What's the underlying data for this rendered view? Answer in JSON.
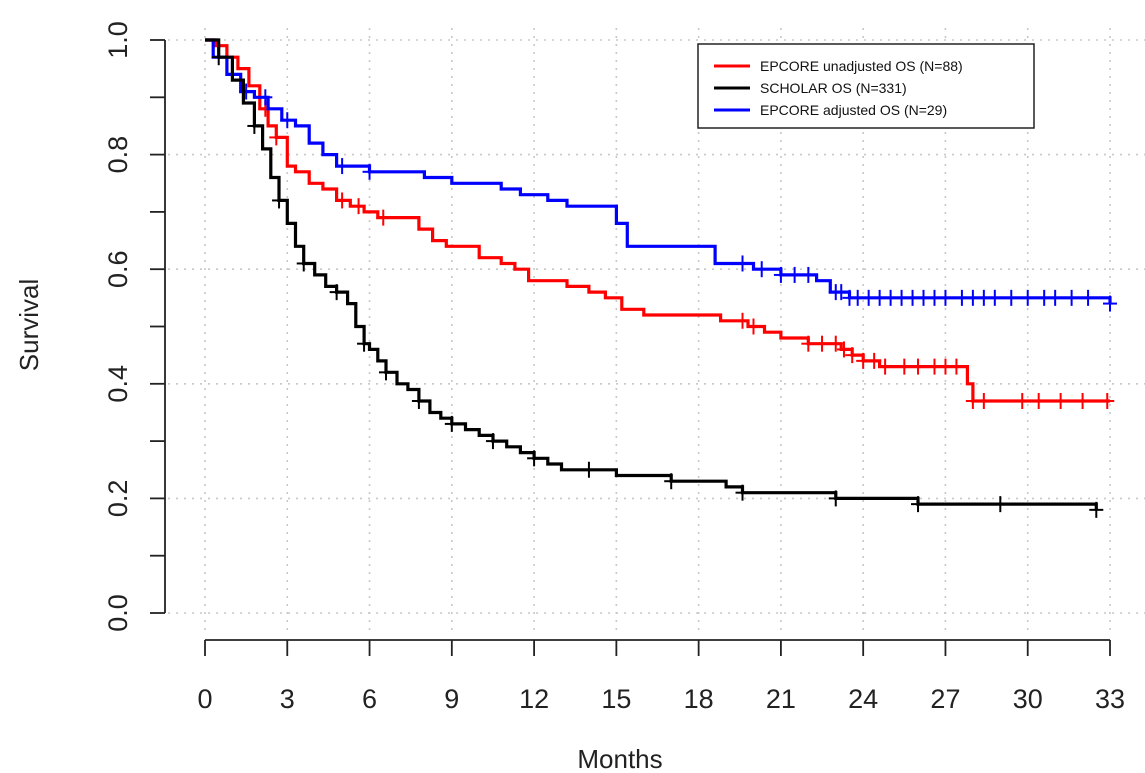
{
  "chart_data": {
    "type": "line",
    "title": "",
    "xlabel": "Months",
    "ylabel": "Survival",
    "xlim": [
      0,
      33
    ],
    "ylim": [
      0,
      1
    ],
    "x_ticks": [
      0,
      3,
      6,
      9,
      12,
      15,
      18,
      21,
      24,
      27,
      30,
      33
    ],
    "y_ticks": [
      0.0,
      0.2,
      0.4,
      0.6,
      0.8,
      1.0
    ],
    "y_tick_labels": [
      "0.0",
      "0.2",
      "0.4",
      "0.6",
      "0.8",
      "1.0"
    ],
    "grid": true,
    "legend_position": "top-right",
    "series": [
      {
        "name": "EPCORE unadjusted OS (N=88)",
        "color": "#ff0000",
        "x": [
          0,
          0.4,
          0.8,
          1.2,
          1.6,
          2.0,
          2.3,
          2.6,
          3.0,
          3.3,
          3.8,
          4.3,
          4.8,
          5.3,
          5.8,
          6.3,
          6.8,
          7.8,
          8.3,
          8.8,
          9.5,
          10.0,
          10.8,
          11.3,
          11.8,
          12.3,
          13.2,
          14.0,
          14.6,
          15.2,
          16.0,
          17.3,
          18.2,
          18.8,
          19.8,
          20.4,
          21.0,
          22.0,
          23.2,
          23.6,
          24.0,
          24.6,
          25.2,
          27.6,
          27.8,
          28.0,
          33.0
        ],
        "y": [
          1.0,
          0.99,
          0.97,
          0.95,
          0.92,
          0.88,
          0.85,
          0.83,
          0.78,
          0.77,
          0.75,
          0.74,
          0.72,
          0.71,
          0.7,
          0.69,
          0.69,
          0.67,
          0.65,
          0.64,
          0.64,
          0.62,
          0.61,
          0.6,
          0.58,
          0.58,
          0.57,
          0.56,
          0.55,
          0.53,
          0.52,
          0.52,
          0.52,
          0.51,
          0.5,
          0.49,
          0.48,
          0.47,
          0.46,
          0.45,
          0.44,
          0.43,
          0.43,
          0.43,
          0.4,
          0.37,
          0.37
        ],
        "censor": [
          2.2,
          2.6,
          5.0,
          5.6,
          6.5,
          19.6,
          20.0,
          22.0,
          22.5,
          23.0,
          23.3,
          23.6,
          24.0,
          24.4,
          24.8,
          25.5,
          26.0,
          26.6,
          27.0,
          27.4,
          28.0,
          28.4,
          29.8,
          30.4,
          31.2,
          32.0,
          32.9
        ]
      },
      {
        "name": "SCHOLAR OS (N=331)",
        "color": "#000000",
        "x": [
          0,
          0.5,
          1.0,
          1.4,
          1.8,
          2.1,
          2.4,
          2.7,
          3.0,
          3.3,
          3.6,
          4.0,
          4.4,
          4.8,
          5.2,
          5.5,
          5.8,
          6.0,
          6.3,
          6.6,
          7.0,
          7.4,
          7.8,
          8.2,
          8.6,
          9.0,
          9.5,
          10.0,
          10.5,
          11.0,
          11.5,
          12.0,
          12.5,
          13.0,
          14.0,
          15.0,
          16.0,
          17.0,
          18.0,
          19.0,
          19.6,
          20.5,
          22.0,
          23.0,
          24.0,
          25.0,
          26.0,
          27.0,
          28.0,
          29.0,
          30.0,
          31.0,
          32.5
        ],
        "y": [
          1.0,
          0.97,
          0.93,
          0.89,
          0.85,
          0.81,
          0.76,
          0.72,
          0.68,
          0.64,
          0.61,
          0.59,
          0.57,
          0.56,
          0.54,
          0.5,
          0.47,
          0.46,
          0.44,
          0.42,
          0.4,
          0.39,
          0.37,
          0.35,
          0.34,
          0.33,
          0.32,
          0.31,
          0.3,
          0.29,
          0.28,
          0.27,
          0.26,
          0.25,
          0.25,
          0.24,
          0.24,
          0.23,
          0.23,
          0.22,
          0.21,
          0.21,
          0.21,
          0.2,
          0.2,
          0.2,
          0.19,
          0.19,
          0.19,
          0.19,
          0.19,
          0.19,
          0.18
        ]
      },
      {
        "name": "EPCORE adjusted OS (N=29)",
        "color": "#0000ff",
        "x": [
          0,
          0.3,
          0.8,
          1.3,
          1.8,
          2.3,
          2.8,
          3.3,
          3.8,
          4.3,
          4.8,
          5.3,
          6.0,
          6.8,
          8.0,
          9.0,
          10.0,
          10.8,
          11.5,
          12.5,
          13.2,
          15.0,
          15.4,
          17.5,
          18.6,
          19.2,
          20.0,
          21.0,
          22.3,
          22.8,
          23.5,
          33.0
        ],
        "y": [
          1.0,
          0.97,
          0.94,
          0.91,
          0.9,
          0.88,
          0.86,
          0.85,
          0.82,
          0.8,
          0.78,
          0.78,
          0.77,
          0.77,
          0.76,
          0.75,
          0.75,
          0.74,
          0.73,
          0.72,
          0.71,
          0.68,
          0.64,
          0.64,
          0.61,
          0.61,
          0.6,
          0.59,
          0.58,
          0.56,
          0.55,
          0.54
        ],
        "censor": [
          1.5,
          2.2,
          3.0,
          5.0,
          6.0,
          19.6,
          20.3,
          21.0,
          21.5,
          22.0,
          23.0,
          23.2,
          23.5,
          23.8,
          24.2,
          24.6,
          25.0,
          25.4,
          25.8,
          26.2,
          26.6,
          27.0,
          27.6,
          28.0,
          28.4,
          28.8,
          29.4,
          30.0,
          30.6,
          31.0,
          31.6,
          32.2,
          33.0
        ]
      }
    ]
  }
}
